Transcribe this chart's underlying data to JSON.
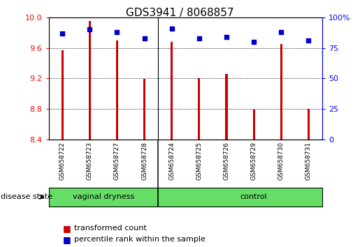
{
  "title": "GDS3941 / 8068857",
  "samples": [
    "GSM658722",
    "GSM658723",
    "GSM658727",
    "GSM658728",
    "GSM658724",
    "GSM658725",
    "GSM658726",
    "GSM658729",
    "GSM658730",
    "GSM658731"
  ],
  "transformed_count": [
    9.57,
    9.95,
    9.7,
    9.19,
    9.68,
    9.2,
    9.26,
    8.79,
    9.65,
    8.8
  ],
  "percentile_rank": [
    87,
    90,
    88,
    83,
    91,
    83,
    84,
    80,
    88,
    81
  ],
  "groups": [
    "vaginal dryness",
    "vaginal dryness",
    "vaginal dryness",
    "vaginal dryness",
    "control",
    "control",
    "control",
    "control",
    "control",
    "control"
  ],
  "bar_color": "#CC0000",
  "dot_color": "#0000CC",
  "ylim_left": [
    8.4,
    10.0
  ],
  "ylim_right": [
    0,
    100
  ],
  "yticks_left": [
    8.4,
    8.8,
    9.2,
    9.6,
    10.0
  ],
  "yticks_right": [
    0,
    25,
    50,
    75,
    100
  ],
  "ytick_labels_right": [
    "0",
    "25",
    "50",
    "75",
    "100%"
  ],
  "bg_color": "#ffffff",
  "bar_width": 0.08,
  "legend_items": [
    "transformed count",
    "percentile rank within the sample"
  ],
  "divider_after": 3,
  "group_green": "#66DD66",
  "cell_grey": "#cccccc"
}
